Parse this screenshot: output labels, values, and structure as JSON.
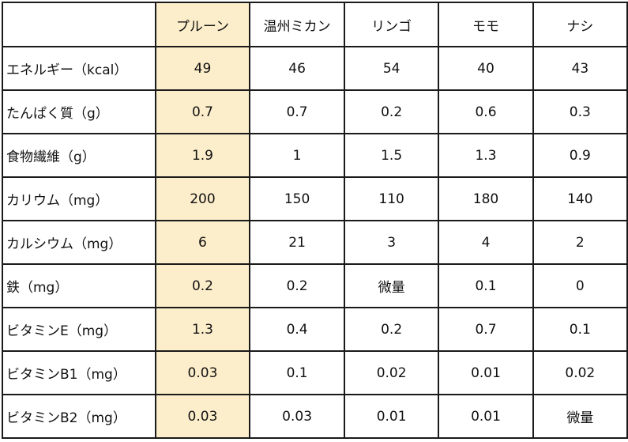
{
  "colors": {
    "highlight": "#fdeecb",
    "border": "#1a1a1a"
  },
  "table": {
    "corner": "",
    "headers": [
      "プルーン",
      "温州ミカン",
      "リンゴ",
      "モモ",
      "ナシ"
    ],
    "rows": [
      {
        "label": "エネルギー（kcal）",
        "values": [
          "49",
          "46",
          "54",
          "40",
          "43"
        ]
      },
      {
        "label": "たんぱく質（g）",
        "values": [
          "0.7",
          "0.7",
          "0.2",
          "0.6",
          "0.3"
        ]
      },
      {
        "label": "食物繊維（g）",
        "values": [
          "1.9",
          "1",
          "1.5",
          "1.3",
          "0.9"
        ]
      },
      {
        "label": "カリウム（mg）",
        "values": [
          "200",
          "150",
          "110",
          "180",
          "140"
        ]
      },
      {
        "label": "カルシウム（mg）",
        "values": [
          "6",
          "21",
          "3",
          "4",
          "2"
        ]
      },
      {
        "label": "鉄（mg）",
        "values": [
          "0.2",
          "0.2",
          "微量",
          "0.1",
          "0"
        ]
      },
      {
        "label": "ビタミンE（mg）",
        "values": [
          "1.3",
          "0.4",
          "0.2",
          "0.7",
          "0.1"
        ]
      },
      {
        "label": "ビタミンB1（mg）",
        "values": [
          "0.03",
          "0.1",
          "0.02",
          "0.01",
          "0.02"
        ]
      },
      {
        "label": "ビタミンB2（mg）",
        "values": [
          "0.03",
          "0.03",
          "0.01",
          "0.01",
          "微量"
        ]
      }
    ]
  }
}
